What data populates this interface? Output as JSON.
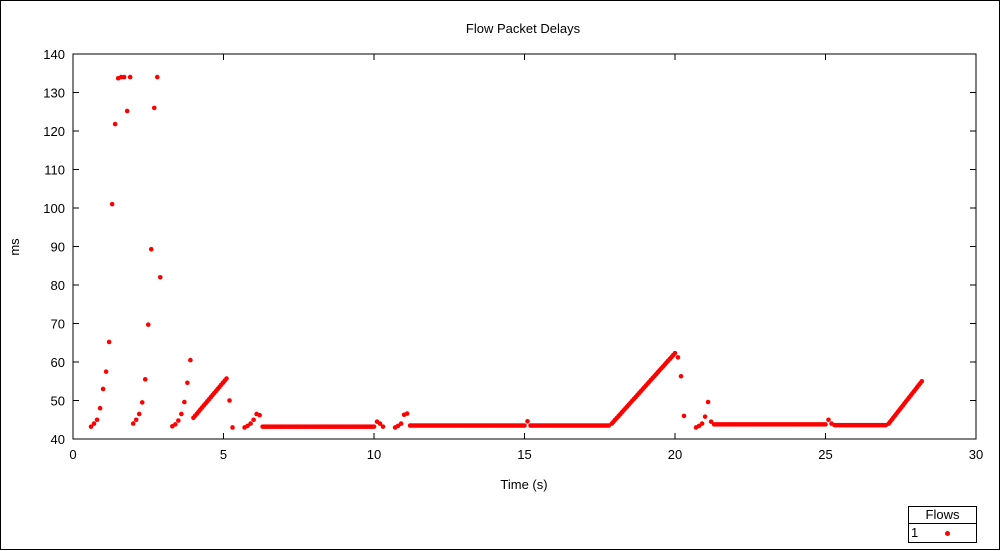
{
  "chart_data": {
    "type": "scatter",
    "title": "Flow Packet Delays",
    "xlabel": "Time (s)",
    "ylabel": "ms",
    "xlim": [
      0,
      30
    ],
    "ylim": [
      40,
      140
    ],
    "xticks": [
      0,
      5,
      10,
      15,
      20,
      25,
      30
    ],
    "yticks": [
      40,
      50,
      60,
      70,
      80,
      90,
      100,
      110,
      120,
      130,
      140
    ],
    "legend": {
      "title": "Flows",
      "position": "bottom-right outside"
    },
    "series": [
      {
        "name": "1",
        "color": "#ff0000",
        "segments": [
          {
            "kind": "points",
            "x": [
              0.6,
              0.7,
              0.8,
              0.9,
              1.0,
              1.1,
              1.2,
              1.3,
              1.4,
              1.5,
              1.6,
              1.7,
              1.8,
              1.9,
              2.0,
              2.1,
              2.2,
              2.3,
              2.4,
              2.5,
              2.6,
              2.7,
              2.8,
              2.9
            ],
            "y": [
              43.2,
              44.0,
              45.0,
              48.0,
              53.0,
              57.5,
              65.2,
              101.0,
              121.8,
              133.7,
              134.0,
              134.0,
              125.2,
              134.0,
              44.0,
              45.0,
              46.5,
              49.5,
              55.5,
              69.7,
              89.3,
              126.0,
              134.0,
              82.0
            ]
          },
          {
            "kind": "points",
            "x": [
              3.3,
              3.4,
              3.5,
              3.6,
              3.7,
              3.8,
              3.9
            ],
            "y": [
              43.3,
              43.8,
              44.8,
              46.5,
              49.6,
              54.6,
              60.5
            ]
          },
          {
            "kind": "ramp",
            "x0": 4.0,
            "x1": 5.1,
            "y0": 45.5,
            "y1": 55.7,
            "n": 20
          },
          {
            "kind": "points",
            "x": [
              5.2,
              5.3
            ],
            "y": [
              50.0,
              43.0
            ]
          },
          {
            "kind": "points",
            "x": [
              5.7,
              5.8,
              5.9,
              6.0,
              6.1,
              6.2
            ],
            "y": [
              43.0,
              43.4,
              44.0,
              45.0,
              46.5,
              46.2
            ]
          },
          {
            "kind": "flat",
            "x0": 6.3,
            "x1": 10.0,
            "y": 43.2,
            "n": 70
          },
          {
            "kind": "points",
            "x": [
              10.1,
              10.2,
              10.3
            ],
            "y": [
              44.5,
              44.0,
              43.2
            ]
          },
          {
            "kind": "points",
            "x": [
              10.7,
              10.8,
              10.9,
              11.0,
              11.1
            ],
            "y": [
              43.0,
              43.4,
              44.0,
              46.3,
              46.6
            ]
          },
          {
            "kind": "flat",
            "x0": 11.2,
            "x1": 15.0,
            "y": 43.5,
            "n": 72
          },
          {
            "kind": "points",
            "x": [
              15.1
            ],
            "y": [
              44.6
            ]
          },
          {
            "kind": "flat",
            "x0": 15.2,
            "x1": 17.8,
            "y": 43.5,
            "n": 50
          },
          {
            "kind": "ramp",
            "x0": 17.9,
            "x1": 20.0,
            "y0": 44.0,
            "y1": 62.3,
            "n": 38
          },
          {
            "kind": "points",
            "x": [
              20.1,
              20.2,
              20.3
            ],
            "y": [
              61.2,
              56.3,
              46.0
            ]
          },
          {
            "kind": "points",
            "x": [
              20.7,
              20.8,
              20.9,
              21.0,
              21.1,
              21.2
            ],
            "y": [
              43.0,
              43.4,
              44.0,
              45.8,
              49.6,
              44.5
            ]
          },
          {
            "kind": "flat",
            "x0": 21.3,
            "x1": 25.0,
            "y": 43.8,
            "n": 70
          },
          {
            "kind": "points",
            "x": [
              25.1,
              25.2
            ],
            "y": [
              45.0,
              44.0
            ]
          },
          {
            "kind": "flat",
            "x0": 25.3,
            "x1": 27.0,
            "y": 43.6,
            "n": 32
          },
          {
            "kind": "ramp",
            "x0": 27.1,
            "x1": 28.2,
            "y0": 44.0,
            "y1": 55.0,
            "n": 22
          }
        ]
      }
    ]
  }
}
